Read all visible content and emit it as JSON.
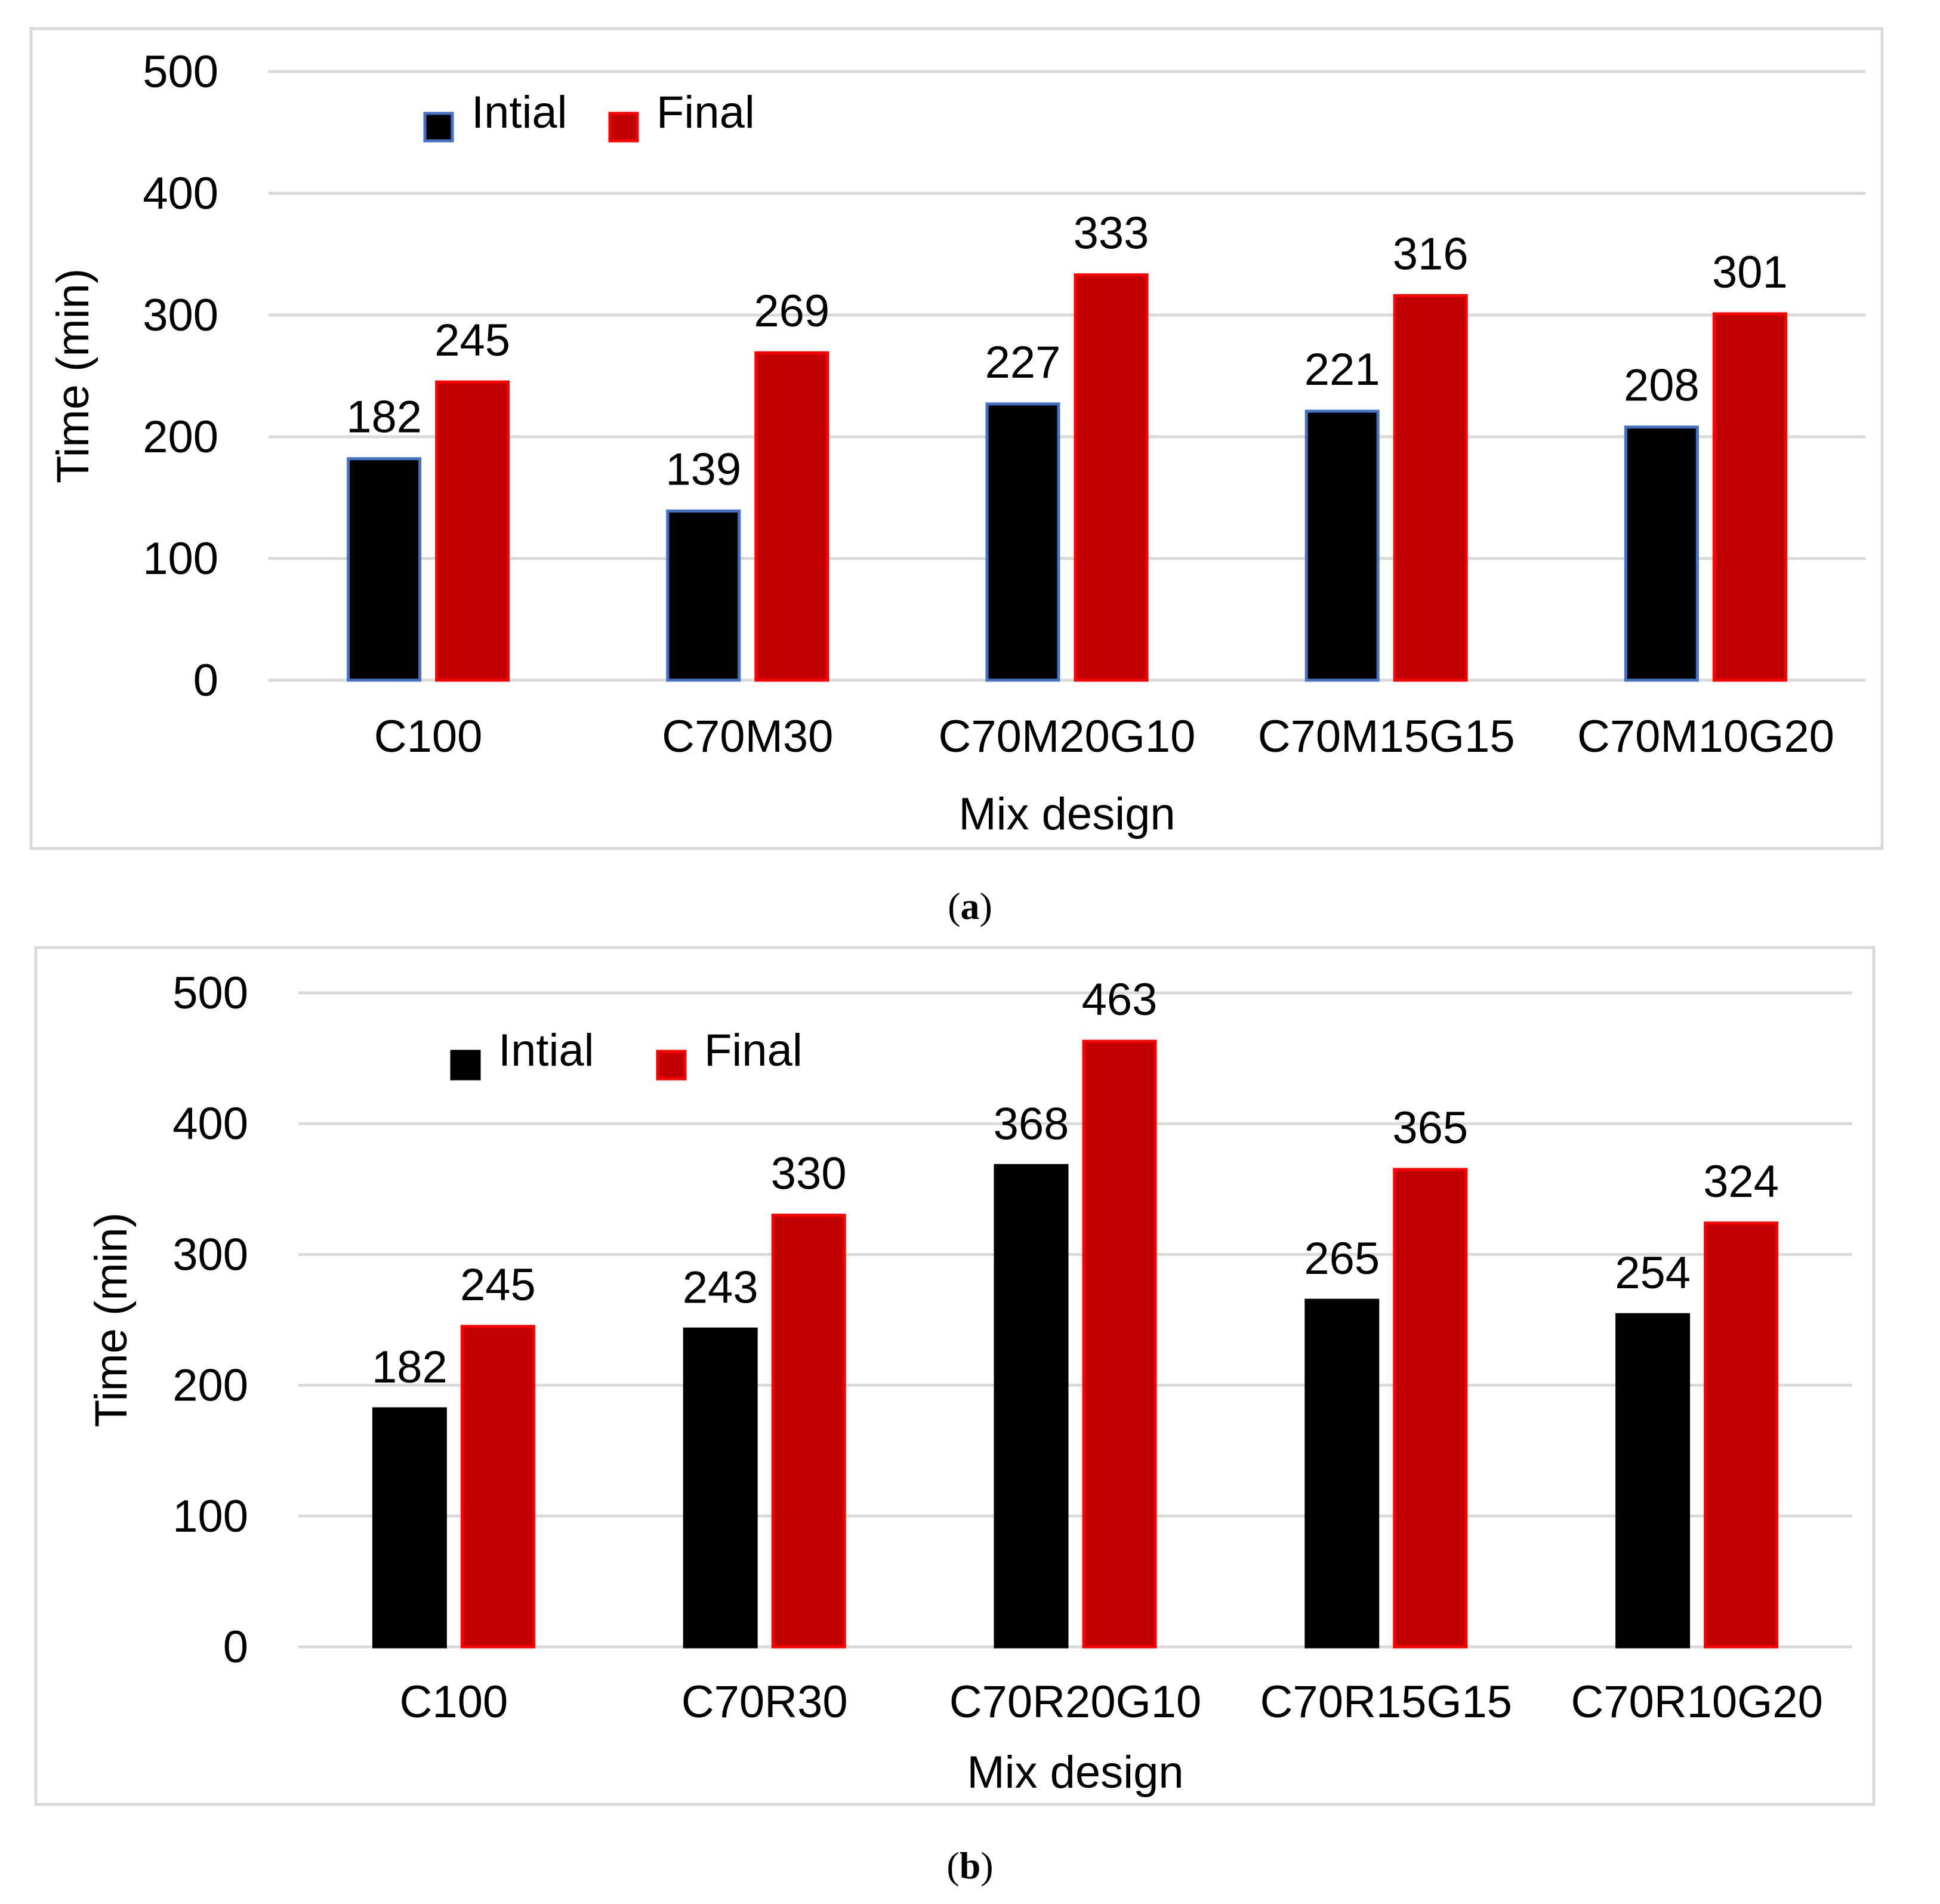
{
  "chart_data": [
    {
      "type": "bar",
      "panel_label": "a",
      "xlabel": "Mix design",
      "ylabel": "Time (min)",
      "ylim": [
        0,
        500
      ],
      "yticks": [
        "0",
        "100",
        "200",
        "300",
        "400",
        "500"
      ],
      "grid": true,
      "legend_position": "top-left",
      "categories": [
        "C100",
        "C70M30",
        "C70M20G10",
        "C70M15G15",
        "C70M10G20"
      ],
      "series": [
        {
          "name": "Intial",
          "values": [
            182,
            139,
            227,
            221,
            208
          ],
          "color": "#000000",
          "edge": "#4472c4"
        },
        {
          "name": "Final",
          "values": [
            245,
            269,
            333,
            316,
            301
          ],
          "color": "#c00000",
          "edge": "#ff0000"
        }
      ]
    },
    {
      "type": "bar",
      "panel_label": "b",
      "xlabel": "Mix design",
      "ylabel": "Time (min)",
      "ylim": [
        0,
        500
      ],
      "yticks": [
        "0",
        "100",
        "200",
        "300",
        "400",
        "500"
      ],
      "grid": true,
      "legend_position": "top-left",
      "categories": [
        "C100",
        "C70R30",
        "C70R20G10",
        "C70R15G15",
        "C70R10G20"
      ],
      "series": [
        {
          "name": "Intial",
          "values": [
            182,
            243,
            368,
            265,
            254
          ],
          "color": "#000000",
          "edge": "#000000"
        },
        {
          "name": "Final",
          "values": [
            245,
            330,
            463,
            365,
            324
          ],
          "color": "#c00000",
          "edge": "#ff0000"
        }
      ]
    }
  ]
}
